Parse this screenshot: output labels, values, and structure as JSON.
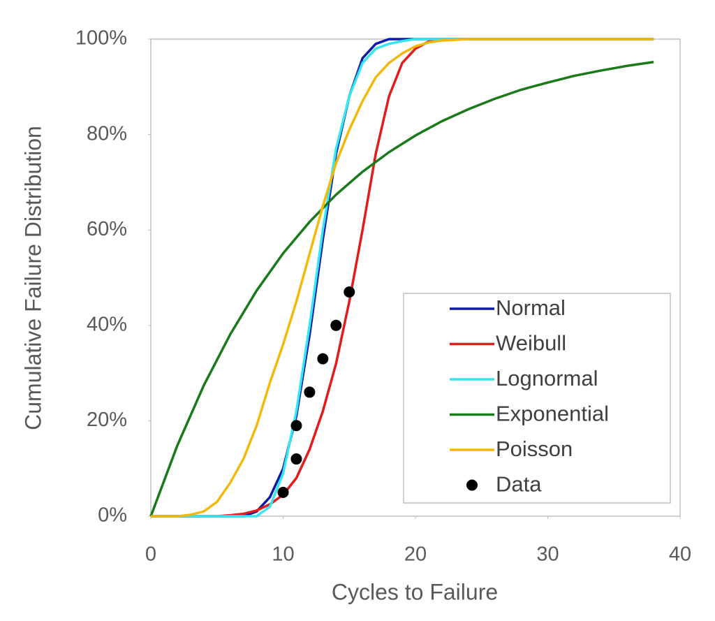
{
  "chart_data": {
    "type": "line",
    "xlabel": "Cycles to Failure",
    "ylabel": "Cumulative Failure Distribution",
    "xlim": [
      0,
      40
    ],
    "ylim": [
      0,
      100
    ],
    "xticks": [
      0,
      10,
      20,
      30,
      40
    ],
    "yticks": [
      {
        "value": 0,
        "label": "0%"
      },
      {
        "value": 20,
        "label": "20%"
      },
      {
        "value": 40,
        "label": "40%"
      },
      {
        "value": 60,
        "label": "60%"
      },
      {
        "value": 80,
        "label": "80%"
      },
      {
        "value": 100,
        "label": "100%"
      }
    ],
    "grid": false,
    "legend": "lower right",
    "series": [
      {
        "name": "Normal",
        "color": "#0c1aa6",
        "mode": "line",
        "x": [
          0,
          7,
          8,
          9,
          10,
          11,
          12,
          13,
          14,
          15,
          16,
          17,
          18,
          38
        ],
        "values": [
          0,
          0,
          1,
          4,
          10,
          21,
          38,
          58,
          76,
          88,
          96,
          99,
          100,
          100
        ]
      },
      {
        "name": "Weibull",
        "color": "#e31b1b",
        "mode": "line",
        "x": [
          0,
          5,
          6,
          7,
          8,
          9,
          10,
          11,
          12,
          13,
          14,
          15,
          16,
          17,
          18,
          19,
          20,
          21,
          22,
          38
        ],
        "values": [
          0,
          0,
          0.2,
          0.5,
          1.2,
          2.5,
          4.5,
          8,
          14,
          22,
          32,
          45,
          60,
          76,
          88,
          95,
          98,
          99.5,
          100,
          100
        ]
      },
      {
        "name": "Lognormal",
        "color": "#33e6f0",
        "mode": "line",
        "x": [
          0,
          8,
          9,
          10,
          11,
          12,
          13,
          14,
          15,
          16,
          17,
          18,
          19,
          20,
          38
        ],
        "values": [
          0,
          0,
          2,
          9,
          22,
          40,
          60,
          77,
          88,
          95,
          98,
          99,
          99.6,
          100,
          100
        ]
      },
      {
        "name": "Exponential",
        "color": "#1a7a1a",
        "mode": "line",
        "x": [
          0,
          2,
          4,
          6,
          8,
          10,
          12,
          14,
          16,
          18,
          20,
          22,
          24,
          26,
          28,
          30,
          32,
          34,
          36,
          38
        ],
        "values": [
          0,
          14.8,
          27.4,
          38.1,
          47.3,
          55.1,
          61.7,
          67.4,
          72.2,
          76.3,
          79.8,
          82.8,
          85.3,
          87.5,
          89.4,
          90.9,
          92.3,
          93.4,
          94.4,
          95.2
        ]
      },
      {
        "name": "Poisson",
        "color": "#f2b90c",
        "mode": "line",
        "x": [
          0,
          2,
          3,
          4,
          5,
          6,
          7,
          8,
          9,
          10,
          11,
          12,
          13,
          14,
          15,
          16,
          17,
          18,
          19,
          20,
          21,
          22,
          24,
          38
        ],
        "values": [
          0,
          0,
          0.3,
          1,
          3,
          7,
          12,
          19,
          28,
          36,
          45,
          55,
          65,
          74,
          81,
          87,
          92,
          95,
          97,
          98.5,
          99.3,
          99.7,
          100,
          100
        ]
      },
      {
        "name": "Data",
        "color": "#000000",
        "mode": "markers",
        "x": [
          10,
          11,
          11,
          12,
          13,
          14,
          15
        ],
        "values": [
          5,
          12,
          19,
          26,
          33,
          40,
          47
        ]
      }
    ]
  }
}
